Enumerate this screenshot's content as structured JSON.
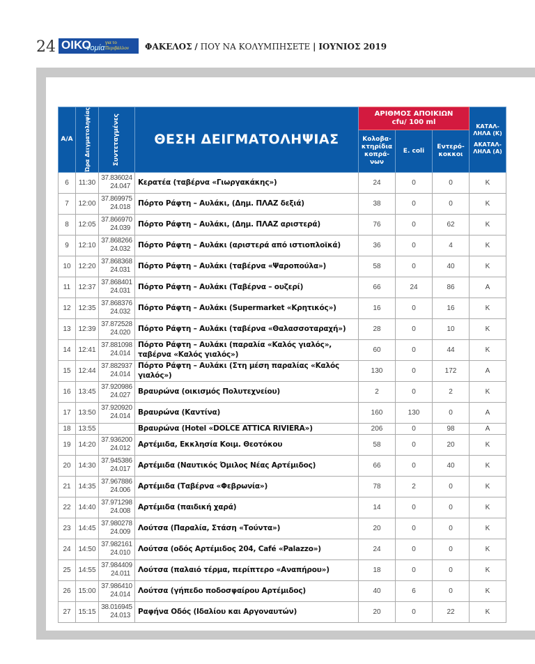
{
  "header": {
    "page_number": "24",
    "logo_main": "ΟΙΚΟ",
    "logo_sub": "νομία",
    "logo_tag": "για το Περιβάλλον",
    "section": "ΦΑΚΕΛΟΣ",
    "separator": "/",
    "topic": "ΠΟΥ ΝΑ ΚΟΛΥΜΠΗΣΕΤΕ",
    "divider": "|",
    "issue": "ΙΟΥΝΙΟΣ 2019"
  },
  "table": {
    "col_aa": "Α/Α",
    "col_time": "Ώρα Δειγματοληψίας",
    "col_coords": "Συντεταγμένες",
    "col_location": "ΘΕΣΗ ΔΕΙΓΜΑΤΟΛΗΨΙΑΣ",
    "group_colonies": "ΑΡΙΘΜΟΣ ΑΠΟΙΚΙΩΝ",
    "group_unit": "cfu/ 100 ml",
    "col_coliform": "Κολοβα-κτηρίδια κοπρά-νων",
    "col_ecoli": "E. coli",
    "col_enterococci": "Εντερό-κοκκοι",
    "col_status_ok": "ΚΑΤΑΛ-ΛΗΛΑ (Κ)",
    "col_status_bad": "ΑΚΑΤΑΛ-ΛΗΛΑ (Α)",
    "rows": [
      [
        "6",
        "11:30",
        "37.836024",
        "24.047",
        "Κερατέα (ταβέρνα «Γιωργακάκης»)",
        "24",
        "0",
        "0",
        "Κ"
      ],
      [
        "7",
        "12:00",
        "37.869975",
        "24.018",
        "Πόρτο Ράφτη – Αυλάκι, (Δημ. ΠΛΑΖ δεξιά)",
        "38",
        "0",
        "0",
        "Κ"
      ],
      [
        "8",
        "12:05",
        "37.866970",
        "24.039",
        "Πόρτο Ράφτη – Αυλάκι, (Δημ. ΠΛΑΖ αριστερά)",
        "76",
        "0",
        "62",
        "Κ"
      ],
      [
        "9",
        "12:10",
        "37.868266",
        "24.032",
        "Πόρτο Ράφτη – Αυλάκι (αριστερά από ιστιοπλοϊκά)",
        "36",
        "0",
        "4",
        "Κ"
      ],
      [
        "10",
        "12:20",
        "37.868368",
        "24.031",
        "Πόρτο Ράφτη – Αυλάκι (ταβέρνα «Ψαροπούλα»)",
        "58",
        "0",
        "40",
        "Κ"
      ],
      [
        "11",
        "12:37",
        "37.868401",
        "24.031",
        "Πόρτο Ράφτη – Αυλάκι (Ταβέρνα – ουζερί)",
        "66",
        "24",
        "86",
        "Α"
      ],
      [
        "12",
        "12:35",
        "37.868376",
        "24.032",
        "Πόρτο Ράφτη – Αυλάκι (Supermarket «Κρητικός»)",
        "16",
        "0",
        "16",
        "Κ"
      ],
      [
        "13",
        "12:39",
        "37.872528",
        "24.020",
        "Πόρτο Ράφτη – Αυλάκι (ταβέρνα «Θαλασσοταραχή»)",
        "28",
        "0",
        "10",
        "Κ"
      ],
      [
        "14",
        "12:41",
        "37.881098",
        "24.014",
        "Πόρτο Ράφτη – Αυλάκι (παραλία «Καλός γιαλός», ταβέρνα «Καλός γιαλός»)",
        "60",
        "0",
        "44",
        "Κ"
      ],
      [
        "15",
        "12:44",
        "37.882937",
        "24.014",
        "Πόρτο Ράφτη – Αυλάκι (Στη μέση παραλίας «Καλός γιαλός»)",
        "130",
        "0",
        "172",
        "Α"
      ],
      [
        "16",
        "13:45",
        "37.920986",
        "24.027",
        "Βραυρώνα (οικισμός Πολυτεχνείου)",
        "2",
        "0",
        "2",
        "Κ"
      ],
      [
        "17",
        "13:50",
        "37.920920",
        "24.014",
        "Βραυρώνα (Καντίνα)",
        "160",
        "130",
        "0",
        "Α"
      ],
      [
        "18",
        "13:55",
        "",
        "",
        "Βραυρώνα (Hotel «DOLCE ATTICA RIVIERA»)",
        "206",
        "0",
        "98",
        "Α"
      ],
      [
        "19",
        "14:20",
        "37.936200",
        "24.012",
        "Αρτέμιδα, Εκκλησία Κοιμ. Θεοτόκου",
        "58",
        "0",
        "20",
        "Κ"
      ],
      [
        "20",
        "14:30",
        "37.945386",
        "24.017",
        "Αρτέμιδα (Ναυτικός Όμιλος Νέας Αρτέμιδος)",
        "66",
        "0",
        "40",
        "Κ"
      ],
      [
        "21",
        "14:35",
        "37.967886",
        "24.006",
        "Αρτέμιδα (Ταβέρνα «Φεβρωνία»)",
        "78",
        "2",
        "0",
        "Κ"
      ],
      [
        "22",
        "14:40",
        "37.971298",
        "24.008",
        "Αρτέμιδα (παιδική χαρά)",
        "14",
        "0",
        "0",
        "Κ"
      ],
      [
        "23",
        "14:45",
        "37.980278",
        "24.009",
        "Λούτσα (Παραλία, Στάση «Τούντα»)",
        "20",
        "0",
        "0",
        "Κ"
      ],
      [
        "24",
        "14:50",
        "37.982161",
        "24.010",
        "Λούτσα (οδός Αρτέμιδος 204, Café «Palazzo»)",
        "24",
        "0",
        "0",
        "Κ"
      ],
      [
        "25",
        "14:55",
        "37.984409",
        "24.011",
        "Λούτσα (παλαιό τέρμα, περίπτερο «Αναπήρου»)",
        "18",
        "0",
        "0",
        "Κ"
      ],
      [
        "26",
        "15:00",
        "37.986410",
        "24.014",
        "Λούτσα (γήπεδο ποδοσφαίρου Αρτέμιδος)",
        "40",
        "6",
        "0",
        "Κ"
      ],
      [
        "27",
        "15:15",
        "38.016945",
        "24.013",
        "Ραφήνα Οδός (Ιδαλίου και Αργοναυτών)",
        "20",
        "0",
        "22",
        "Κ"
      ]
    ]
  },
  "colors": {
    "header_blue": "#0b5aa8",
    "header_red": "#d31a3f",
    "frame_gray": "#c9c9c9"
  }
}
